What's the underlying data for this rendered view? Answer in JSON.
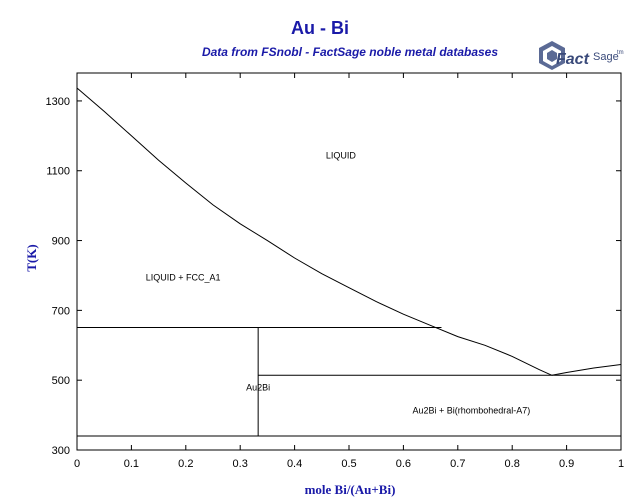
{
  "title": "Au - Bi",
  "subtitle": "Data from FSnobl - FactSage noble metal databases",
  "logo": {
    "text_main": "Fact",
    "text_sage": "Sage",
    "text_tm": "tm"
  },
  "chart_data": {
    "type": "phase-diagram",
    "xlabel": "mole Bi/(Au+Bi)",
    "ylabel": "T(K)",
    "xlim": [
      0,
      1
    ],
    "ylim": [
      300,
      1380
    ],
    "xticks": [
      "0",
      "0.1",
      "0.2",
      "0.3",
      "0.4",
      "0.5",
      "0.6",
      "0.7",
      "0.8",
      "0.9",
      "1"
    ],
    "yticks": [
      "300",
      "500",
      "700",
      "900",
      "1100",
      "1300"
    ],
    "liquidus_left": [
      [
        0,
        1337
      ],
      [
        0.05,
        1270
      ],
      [
        0.1,
        1200
      ],
      [
        0.15,
        1130
      ],
      [
        0.2,
        1065
      ],
      [
        0.25,
        1002
      ],
      [
        0.3,
        948
      ],
      [
        0.35,
        900
      ],
      [
        0.4,
        850
      ],
      [
        0.45,
        805
      ],
      [
        0.5,
        765
      ],
      [
        0.55,
        725
      ],
      [
        0.6,
        689
      ],
      [
        0.65,
        657
      ],
      [
        0.7,
        625
      ],
      [
        0.75,
        600
      ],
      [
        0.8,
        568
      ],
      [
        0.85,
        530
      ],
      [
        0.873,
        514
      ]
    ],
    "liquidus_right": [
      [
        0.873,
        514
      ],
      [
        0.9,
        522
      ],
      [
        0.95,
        535
      ],
      [
        1,
        545
      ]
    ],
    "peritectic_T": 651,
    "peritectic_x_range": [
      0,
      0.67
    ],
    "eutectic_T": 514,
    "eutectic_x_range": [
      0.333,
      1
    ],
    "lower_T": 340,
    "lower_x_range": [
      0,
      1
    ],
    "compound_x": 0.333,
    "compound_T_range": [
      340,
      651
    ],
    "labels": [
      {
        "text": "LIQUID",
        "x": 0.485,
        "T": 1135
      },
      {
        "text": "LIQUID + FCC_A1",
        "x": 0.195,
        "T": 785
      },
      {
        "text": "Au2Bi",
        "x": 0.333,
        "T": 470
      },
      {
        "text": "Au2Bi + Bi(rhombohedral-A7)",
        "x": 0.725,
        "T": 405
      }
    ]
  }
}
